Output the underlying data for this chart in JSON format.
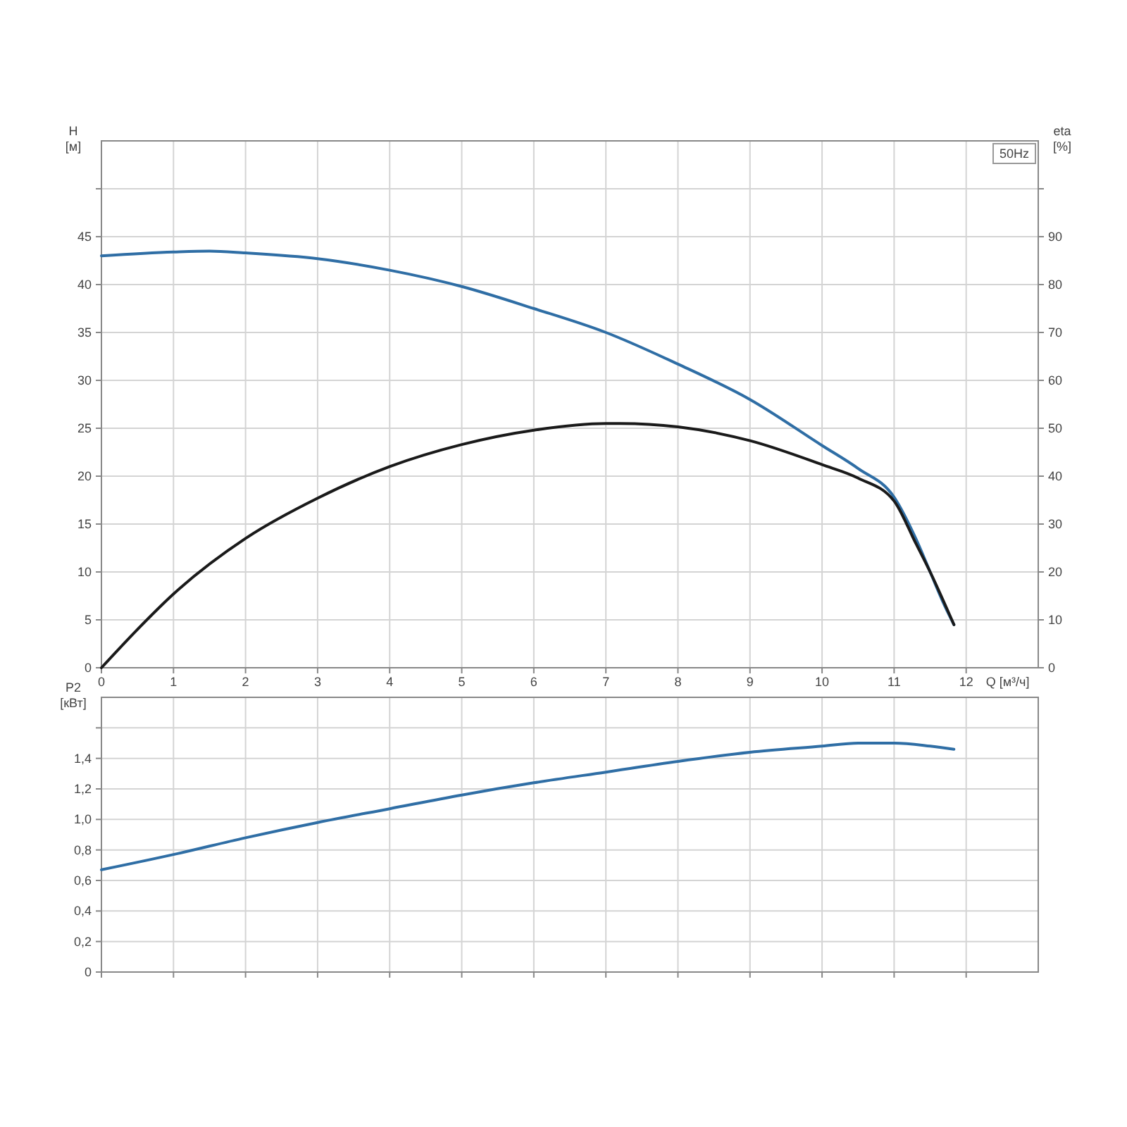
{
  "chart_data": [
    {
      "type": "line",
      "xlabel": "Q [м³/ч]",
      "ylabel": "H [м]",
      "y2label": "eta [%]",
      "annotations": [
        "50Hz"
      ],
      "xlim": [
        0,
        13
      ],
      "xticks": [
        0,
        1,
        2,
        3,
        4,
        5,
        6,
        7,
        8,
        9,
        10,
        11,
        12
      ],
      "ylim": [
        0,
        55
      ],
      "yticks": [
        0,
        5,
        10,
        15,
        20,
        25,
        30,
        35,
        40,
        45,
        {
          "value": 50,
          "label": null
        }
      ],
      "y2lim": [
        0,
        110
      ],
      "y2ticks": [
        0,
        10,
        20,
        30,
        40,
        50,
        60,
        70,
        80,
        90,
        {
          "value": 100,
          "label": null
        }
      ],
      "grid": true,
      "series": [
        {
          "color": "#2f6ea5",
          "x": [
            0,
            1,
            1.5,
            2,
            3,
            4,
            5,
            6,
            7,
            8,
            9,
            10,
            10.5,
            11,
            11.3,
            11.5,
            11.7,
            11.83
          ],
          "values": [
            43,
            43.4,
            43.5,
            43.3,
            42.7,
            41.5,
            39.8,
            37.5,
            35,
            31.7,
            28,
            23.2,
            20.8,
            17.8,
            13.5,
            10,
            6.5,
            4.5
          ]
        },
        {
          "color": "#1a1a1a",
          "axis": "y2",
          "x": [
            0,
            0.5,
            1,
            2,
            3,
            4,
            5,
            6,
            7,
            7.2,
            8,
            9,
            10,
            10.5,
            11,
            11.3,
            11.5,
            11.83
          ],
          "values": [
            0,
            8,
            15.4,
            27,
            35.4,
            42,
            46.6,
            49.6,
            51,
            51,
            50.3,
            47.4,
            42.4,
            39.6,
            34.8,
            26,
            20,
            9
          ]
        }
      ]
    },
    {
      "type": "line",
      "ylabel": "P2 [кВт]",
      "xlim": [
        0,
        13
      ],
      "xticks": [
        0,
        1,
        2,
        3,
        4,
        5,
        6,
        7,
        8,
        9,
        10,
        11,
        12
      ],
      "ylim": [
        0,
        1.8
      ],
      "yticks": [
        0,
        {
          "value": 0.2,
          "label": "0,2"
        },
        {
          "value": 0.4,
          "label": "0,4"
        },
        {
          "value": 0.6,
          "label": "0,6"
        },
        {
          "value": 0.8,
          "label": "0,8"
        },
        {
          "value": 1,
          "label": "1,0"
        },
        {
          "value": 1.2,
          "label": "1,2"
        },
        {
          "value": 1.4,
          "label": "1,4"
        },
        {
          "value": 1.6,
          "label": null
        }
      ],
      "tick_labels": "y",
      "grid": true,
      "series": [
        {
          "color": "#2f6ea5",
          "x": [
            0,
            1,
            2,
            3,
            4,
            5,
            6,
            7,
            8,
            9,
            10,
            10.5,
            11,
            11.5,
            11.83
          ],
          "values": [
            0.67,
            0.77,
            0.88,
            0.98,
            1.07,
            1.16,
            1.24,
            1.31,
            1.38,
            1.44,
            1.48,
            1.5,
            1.5,
            1.48,
            1.46
          ]
        }
      ]
    }
  ]
}
